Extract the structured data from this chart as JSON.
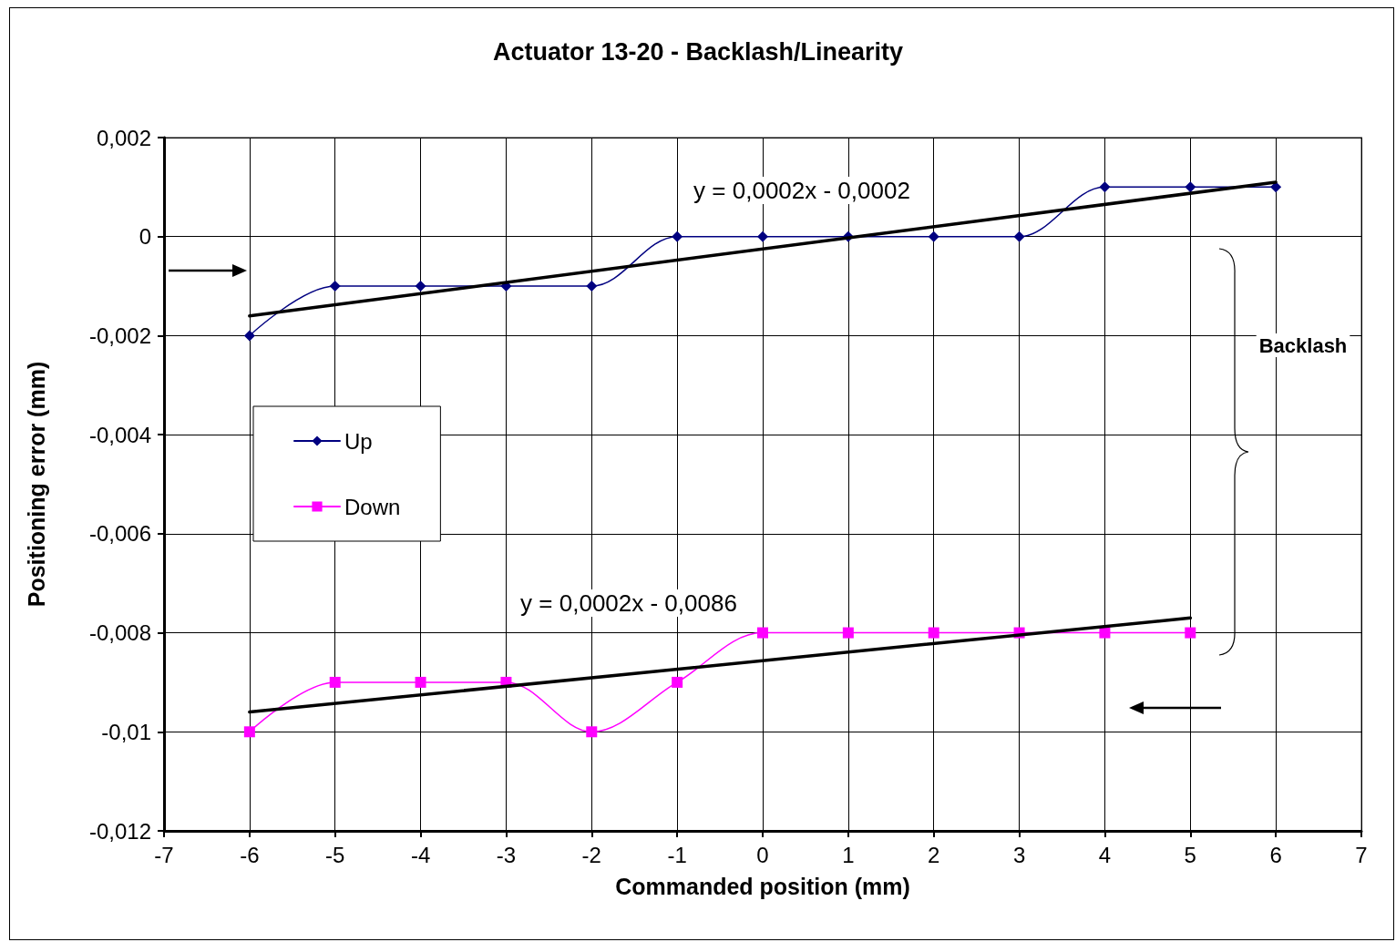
{
  "chart_data": {
    "type": "line",
    "title": "Actuator 13-20 - Backlash/Linearity",
    "xlabel": "Commanded position (mm)",
    "ylabel": "Positioning error (mm)",
    "xlim": [
      -7,
      7
    ],
    "xticks": [
      -7,
      -6,
      -5,
      -4,
      -3,
      -2,
      -1,
      0,
      1,
      2,
      3,
      4,
      5,
      6,
      7
    ],
    "ylim": [
      -0.012,
      0.002
    ],
    "yticks": [
      {
        "value": -0.012,
        "label": "-0,012"
      },
      {
        "value": -0.01,
        "label": "-0,01"
      },
      {
        "value": -0.008,
        "label": "-0,008"
      },
      {
        "value": -0.006,
        "label": "-0,006"
      },
      {
        "value": -0.004,
        "label": "-0,004"
      },
      {
        "value": -0.002,
        "label": "-0,002"
      },
      {
        "value": 0,
        "label": "0"
      },
      {
        "value": 0.002,
        "label": "0,002"
      }
    ],
    "grid": true,
    "legend": "left",
    "line_style": "solid",
    "series": [
      {
        "name": "Up",
        "color": "#000080",
        "marker": "diamond",
        "x": [
          -6,
          -5,
          -4,
          -3,
          -2,
          -1,
          0,
          1,
          2,
          3,
          4,
          5,
          6
        ],
        "values": [
          -0.002,
          -0.001,
          -0.001,
          -0.001,
          -0.001,
          0,
          0,
          0,
          0,
          0,
          0.001,
          0.001,
          0.001
        ]
      },
      {
        "name": "Down",
        "color": "#ff00ff",
        "marker": "square",
        "x": [
          -6,
          -5,
          -4,
          -3,
          -2,
          -1,
          0,
          1,
          2,
          3,
          4,
          5
        ],
        "values": [
          -0.01,
          -0.009,
          -0.009,
          -0.009,
          -0.01,
          -0.009,
          -0.008,
          -0.008,
          -0.008,
          -0.008,
          -0.008,
          -0.008
        ]
      },
      {
        "type": "line",
        "color": "#000000",
        "marker": "none",
        "x": [
          -6,
          6
        ],
        "values": [
          -0.0016,
          0.0011
        ]
      },
      {
        "type": "line",
        "color": "#000000",
        "marker": "none",
        "x": [
          -6,
          5
        ],
        "values": [
          -0.0096,
          -0.0077
        ]
      }
    ],
    "annotations": [
      "y = 0,0002x - 0,0002",
      "y = 0,0002x - 0,0086",
      "Backlash"
    ]
  }
}
